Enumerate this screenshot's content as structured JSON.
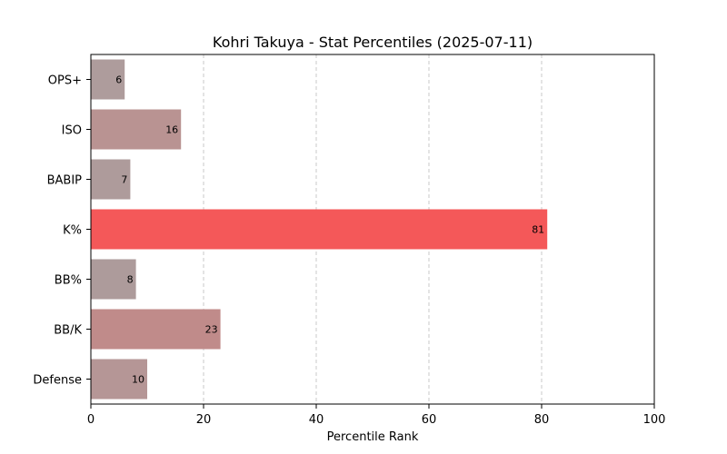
{
  "chart_data": {
    "type": "bar",
    "orientation": "horizontal",
    "title": "Kohri Takuya - Stat Percentiles (2025-07-11)",
    "xlabel": "Percentile Rank",
    "ylabel": "",
    "xlim": [
      0,
      100
    ],
    "xticks": [
      0,
      20,
      40,
      60,
      80,
      100
    ],
    "grid": "vertical-dashed",
    "categories": [
      "OPS+",
      "ISO",
      "BABIP",
      "K%",
      "BB%",
      "BB/K",
      "Defense"
    ],
    "values": [
      6,
      16,
      7,
      81,
      8,
      23,
      10
    ],
    "colors": [
      "#ae9c9c",
      "#b99392",
      "#ae9b9b",
      "#f45859",
      "#ad9b9b",
      "#c08b8a",
      "#b59696"
    ]
  }
}
